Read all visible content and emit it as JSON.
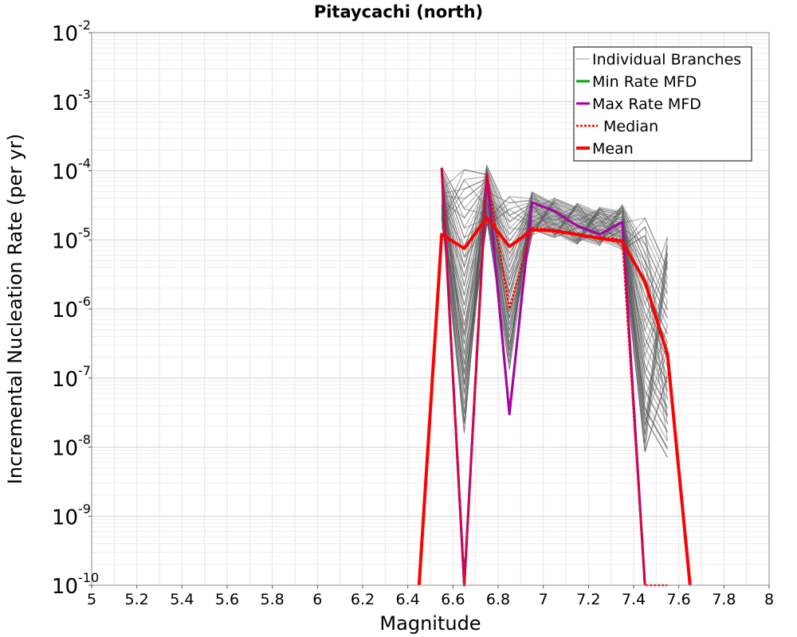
{
  "chart_data": {
    "type": "line",
    "title": "Pitaycachi (north)",
    "xlabel": "Magnitude",
    "ylabel": "Incremental Nucleation Rate (per yr)",
    "xlim": [
      5,
      8
    ],
    "ylim": [
      1e-10,
      0.01
    ],
    "yscale": "log",
    "grid": true,
    "legend_position": "top-right",
    "x_ticks": [
      "5",
      "5.2",
      "5.4",
      "5.6",
      "5.8",
      "6",
      "6.2",
      "6.4",
      "6.6",
      "6.8",
      "7",
      "7.2",
      "7.4",
      "7.6",
      "7.8",
      "8"
    ],
    "y_ticks": [
      {
        "base": "10",
        "exp": "-2"
      },
      {
        "base": "10",
        "exp": "-3"
      },
      {
        "base": "10",
        "exp": "-4"
      },
      {
        "base": "10",
        "exp": "-5"
      },
      {
        "base": "10",
        "exp": "-6"
      },
      {
        "base": "10",
        "exp": "-7"
      },
      {
        "base": "10",
        "exp": "-8"
      },
      {
        "base": "10",
        "exp": "-9"
      },
      {
        "base": "10",
        "exp": "-10"
      }
    ],
    "x": [
      6.45,
      6.55,
      6.65,
      6.75,
      6.85,
      6.95,
      7.05,
      7.15,
      7.25,
      7.35,
      7.45,
      7.55,
      7.65
    ],
    "series": [
      {
        "name": "Individual Branches",
        "color": "#555555",
        "description_values": "many branches; envelope shown",
        "upper": [
          null,
          0.00012,
          0.00012,
          0.00012,
          5e-05,
          5e-05,
          4e-05,
          3.5e-05,
          3e-05,
          3.2e-05,
          2.5e-05,
          1.2e-05,
          null
        ],
        "lower": [
          null,
          5e-06,
          1e-10,
          5e-06,
          5e-09,
          5e-06,
          5e-06,
          4e-06,
          4e-06,
          3e-06,
          1e-10,
          1e-10,
          null
        ]
      },
      {
        "name": "Min Rate MFD",
        "color": "#00aa00",
        "values": [
          null,
          0.00011,
          1e-10,
          9e-05,
          3e-08,
          3.5e-05,
          2.6e-05,
          1.6e-05,
          1.2e-05,
          1.8e-05,
          1e-10,
          null,
          null
        ]
      },
      {
        "name": "Max Rate MFD",
        "color": "#aa00aa",
        "values": [
          null,
          0.00011,
          1e-10,
          9e-05,
          3e-08,
          3.5e-05,
          2.6e-05,
          1.6e-05,
          1.2e-05,
          1.8e-05,
          1e-10,
          null,
          null
        ]
      },
      {
        "name": "Median",
        "color": "#ff0000",
        "values": [
          null,
          0.00011,
          1e-10,
          9e-05,
          1e-06,
          1.5e-05,
          1.4e-05,
          1.2e-05,
          1.1e-05,
          1e-05,
          1e-10,
          1e-10,
          null
        ]
      },
      {
        "name": "Mean",
        "color": "#ff0000",
        "values": [
          1e-10,
          1.2e-05,
          7.5e-06,
          2.1e-05,
          8e-06,
          1.4e-05,
          1.35e-05,
          1.2e-05,
          1.05e-05,
          9.5e-06,
          2.5e-06,
          2.2e-07,
          1e-10
        ]
      }
    ]
  }
}
